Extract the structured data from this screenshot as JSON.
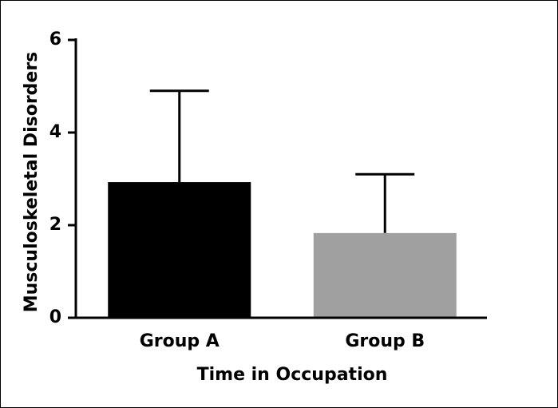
{
  "chart_data": {
    "type": "bar",
    "x_label": "Time in Occupation",
    "y_label": "Musculoskeletal Disorders",
    "categories": [
      "Group A",
      "Group B"
    ],
    "values": [
      2.93,
      1.83
    ],
    "errors": [
      1.97,
      1.27
    ],
    "colors": [
      "#000000",
      "#a0a0a0"
    ],
    "ylim": [
      0,
      6
    ],
    "yticks": [
      0,
      2,
      4,
      6
    ]
  }
}
